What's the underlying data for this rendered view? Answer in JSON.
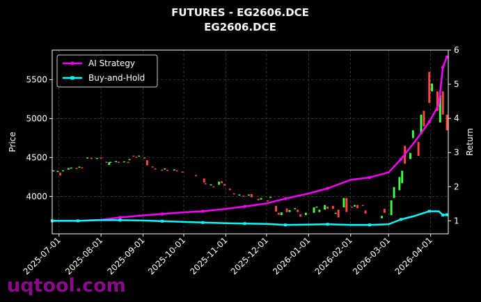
{
  "chart_data": {
    "type": "candlestick_with_returns",
    "title": "FUTURES - EG2606.DCE",
    "subtitle": "EG2606.DCE",
    "ylabel": "Price",
    "y2label": "Return",
    "ylim": [
      3520,
      5880
    ],
    "y2lim": [
      0.62,
      6.0
    ],
    "yticks": [
      4000,
      4500,
      5000,
      5500
    ],
    "y2ticks": [
      1,
      2,
      3,
      4,
      5,
      6
    ],
    "xlim": [
      "2025-06-26",
      "2026-04-14"
    ],
    "xticks": [
      "2025-07-01",
      "2025-08-01",
      "2025-09-01",
      "2025-10-01",
      "2025-11-01",
      "2025-12-01",
      "2026-01-01",
      "2026-02-01",
      "2026-03-01",
      "2026-04-01"
    ],
    "grid": true,
    "legend_position": "top-left",
    "up_color": "#44ff44",
    "down_color": "#ff4444",
    "candles": [
      [
        "2025-06-27",
        4330,
        4335
      ],
      [
        "2025-06-30",
        4325,
        4328
      ],
      [
        "2025-07-02",
        4305,
        4268
      ],
      [
        "2025-07-04",
        4335,
        4336
      ],
      [
        "2025-07-08",
        4345,
        4365
      ],
      [
        "2025-07-10",
        4370,
        4372
      ],
      [
        "2025-07-14",
        4365,
        4360
      ],
      [
        "2025-07-16",
        4380,
        4383
      ],
      [
        "2025-07-18",
        4375,
        4365
      ],
      [
        "2025-07-22",
        4495,
        4500
      ],
      [
        "2025-07-25",
        4495,
        4492
      ],
      [
        "2025-07-29",
        4490,
        4495
      ],
      [
        "2025-08-01",
        4500,
        4497
      ],
      [
        "2025-08-05",
        4445,
        4440
      ],
      [
        "2025-08-07",
        4405,
        4440
      ],
      [
        "2025-08-08",
        4440,
        4445
      ],
      [
        "2025-08-12",
        4450,
        4455
      ],
      [
        "2025-08-14",
        4445,
        4442
      ],
      [
        "2025-08-18",
        4448,
        4452
      ],
      [
        "2025-08-21",
        4445,
        4440
      ],
      [
        "2025-08-22",
        4470,
        4480
      ],
      [
        "2025-08-25",
        4525,
        4520
      ],
      [
        "2025-08-27",
        4510,
        4505
      ],
      [
        "2025-08-29",
        4520,
        4525
      ],
      [
        "2025-09-02",
        4500,
        4495
      ],
      [
        "2025-09-04",
        4465,
        4400
      ],
      [
        "2025-09-08",
        4385,
        4380
      ],
      [
        "2025-09-10",
        4360,
        4355
      ],
      [
        "2025-09-15",
        4345,
        4340
      ],
      [
        "2025-09-17",
        4355,
        4360
      ],
      [
        "2025-09-19",
        4340,
        4335
      ],
      [
        "2025-09-24",
        4345,
        4347
      ],
      [
        "2025-09-26",
        4335,
        4330
      ],
      [
        "2025-09-30",
        4320,
        4318
      ],
      [
        "2025-10-10",
        4275,
        4260
      ],
      [
        "2025-10-16",
        4230,
        4180
      ],
      [
        "2025-10-17",
        4170,
        4165
      ],
      [
        "2025-10-21",
        4150,
        4155
      ],
      [
        "2025-10-23",
        4130,
        4125
      ],
      [
        "2025-10-27",
        4150,
        4190
      ],
      [
        "2025-10-29",
        4195,
        4170
      ],
      [
        "2025-10-31",
        4160,
        4140
      ],
      [
        "2025-11-04",
        4100,
        4080
      ],
      [
        "2025-11-07",
        4040,
        4030
      ],
      [
        "2025-11-11",
        4020,
        4025
      ],
      [
        "2025-11-14",
        4010,
        4005
      ],
      [
        "2025-11-18",
        4020,
        4025
      ],
      [
        "2025-11-20",
        4030,
        3990
      ],
      [
        "2025-11-25",
        3970,
        3950
      ],
      [
        "2025-11-27",
        3960,
        3980
      ],
      [
        "2025-12-02",
        3950,
        3935
      ],
      [
        "2025-12-04",
        3990,
        3995
      ],
      [
        "2025-12-08",
        3880,
        3805
      ],
      [
        "2025-12-10",
        3790,
        3765
      ],
      [
        "2025-12-12",
        3760,
        3795
      ],
      [
        "2025-12-16",
        3845,
        3800
      ],
      [
        "2025-12-18",
        3800,
        3825
      ],
      [
        "2025-12-22",
        3840,
        3850
      ],
      [
        "2025-12-24",
        3830,
        3800
      ],
      [
        "2025-12-26",
        3770,
        3740
      ],
      [
        "2025-12-30",
        3760,
        3790
      ],
      [
        "2026-01-05",
        3790,
        3860
      ],
      [
        "2026-01-07",
        3860,
        3870
      ],
      [
        "2026-01-09",
        3800,
        3830
      ],
      [
        "2026-01-13",
        3830,
        3890
      ],
      [
        "2026-01-15",
        3870,
        3840
      ],
      [
        "2026-01-19",
        3880,
        3840
      ],
      [
        "2026-01-21",
        3790,
        3790
      ],
      [
        "2026-01-23",
        3830,
        3730
      ],
      [
        "2026-01-27",
        3860,
        3980
      ],
      [
        "2026-01-29",
        3980,
        3800
      ],
      [
        "2026-02-02",
        3870,
        3860
      ],
      [
        "2026-02-04",
        3870,
        3890
      ],
      [
        "2026-02-06",
        3890,
        3850
      ],
      [
        "2026-02-10",
        3890,
        3880
      ],
      [
        "2026-02-12",
        3820,
        3780
      ],
      [
        "2026-02-24",
        3720,
        3750
      ],
      [
        "2026-02-26",
        3840,
        3790
      ],
      [
        "2026-03-03",
        3760,
        3950
      ],
      [
        "2026-03-05",
        3980,
        4120
      ],
      [
        "2026-03-09",
        4080,
        4250
      ],
      [
        "2026-03-11",
        4170,
        4330
      ],
      [
        "2026-03-13",
        4650,
        4420
      ],
      [
        "2026-03-17",
        4480,
        4560
      ],
      [
        "2026-03-19",
        4750,
        4850
      ],
      [
        "2026-03-23",
        4700,
        4520
      ],
      [
        "2026-03-25",
        4800,
        5050
      ],
      [
        "2026-03-27",
        5100,
        4900
      ],
      [
        "2026-03-31",
        5600,
        5200
      ],
      [
        "2026-04-02",
        5350,
        5450
      ],
      [
        "2026-04-06",
        5350,
        5100
      ],
      [
        "2026-04-08",
        4950,
        5300
      ],
      [
        "2026-04-10",
        5350,
        5050
      ],
      [
        "2026-04-13",
        5050,
        4850
      ]
    ],
    "series": [
      {
        "name": "AI Strategy",
        "color": "#ff00ff",
        "x": [
          "2025-06-26",
          "2025-07-15",
          "2025-08-01",
          "2025-08-15",
          "2025-09-01",
          "2025-09-15",
          "2025-10-01",
          "2025-10-15",
          "2025-11-01",
          "2025-11-15",
          "2025-12-01",
          "2025-12-15",
          "2026-01-01",
          "2026-01-15",
          "2026-02-01",
          "2026-02-15",
          "2026-03-01",
          "2026-03-10",
          "2026-03-20",
          "2026-03-31",
          "2026-04-07",
          "2026-04-10",
          "2026-04-13"
        ],
        "values": [
          1.0,
          1.0,
          1.03,
          1.1,
          1.16,
          1.2,
          1.25,
          1.28,
          1.35,
          1.42,
          1.51,
          1.65,
          1.8,
          1.95,
          2.2,
          2.27,
          2.42,
          2.8,
          3.3,
          3.9,
          4.4,
          5.5,
          5.8
        ],
        "marker": "circle"
      },
      {
        "name": "Buy-and-Hold",
        "color": "#00ffff",
        "x": [
          "2025-06-26",
          "2025-07-15",
          "2025-08-01",
          "2025-08-15",
          "2025-09-01",
          "2025-09-15",
          "2025-10-01",
          "2025-10-15",
          "2025-11-01",
          "2025-11-15",
          "2025-12-01",
          "2025-12-15",
          "2026-01-01",
          "2026-01-15",
          "2026-02-01",
          "2026-02-15",
          "2026-03-01",
          "2026-03-10",
          "2026-03-20",
          "2026-03-31",
          "2026-04-07",
          "2026-04-10",
          "2026-04-13"
        ],
        "values": [
          1.0,
          1.0,
          1.02,
          1.02,
          1.01,
          0.99,
          0.97,
          0.95,
          0.93,
          0.92,
          0.91,
          0.88,
          0.89,
          0.9,
          0.88,
          0.88,
          0.9,
          1.04,
          1.14,
          1.28,
          1.28,
          1.17,
          1.18
        ],
        "marker": "square"
      }
    ]
  },
  "watermark": "uqtool.com"
}
